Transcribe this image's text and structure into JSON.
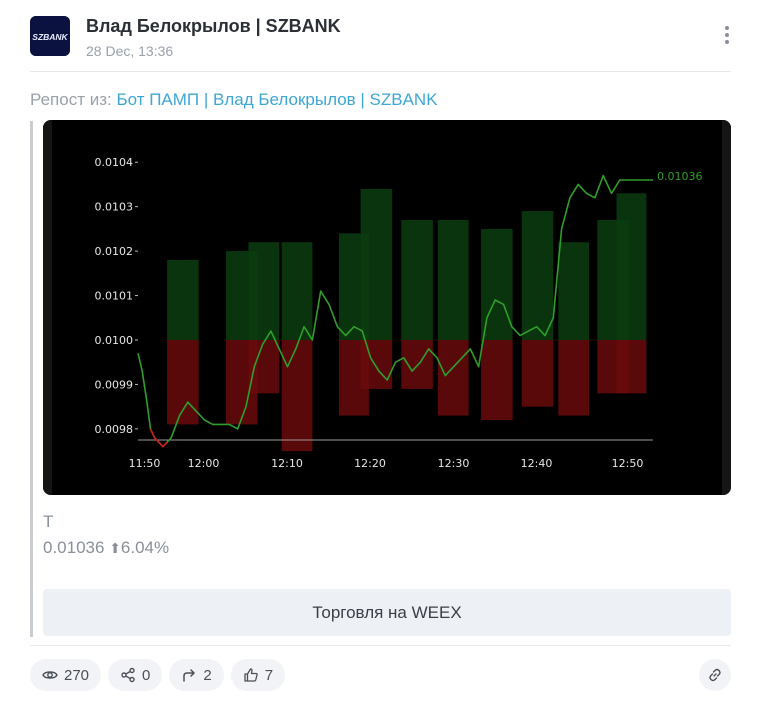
{
  "post": {
    "channel_name": "Влад Белокрылов | SZBANK",
    "date": "28 Dec, 13:36",
    "avatar_text": "SZBANK",
    "repost_prefix": "Репост из: ",
    "repost_source": "Бот ПАМП | Влад Белокрылов | SZBANK",
    "ticker": "T",
    "price": "0.01036",
    "change_arrow": "⬆",
    "change": "6.04%",
    "trade_button": "Торговля на WEEX"
  },
  "stats": {
    "views": "270",
    "shares": "0",
    "reposts": "2",
    "likes": "7"
  },
  "icons": {
    "menu": "more-vertical-icon",
    "views": "eye-icon",
    "shares": "share-icon",
    "reposts": "forward-arrow-icon",
    "likes": "thumbs-up-icon",
    "link": "link-icon"
  },
  "colors": {
    "accent_link": "#3ea6d6",
    "up_bar": "#0a3d0f",
    "down_bar": "#6a0a0d",
    "line": "#2f9e2a",
    "chart_bg": "#000000"
  },
  "chart_data": {
    "type": "line",
    "title": "",
    "xlabel": "",
    "ylabel": "",
    "x_ticks": [
      "11:50",
      "12:00",
      "12:10",
      "12:20",
      "12:30",
      "12:40",
      "12:50"
    ],
    "y_ticks": [
      "0.0098",
      "0.0099",
      "0.0100",
      "0.0101",
      "0.0102",
      "0.0103",
      "0.0104"
    ],
    "ylim": [
      0.00973,
      0.01045
    ],
    "xlim": [
      0,
      62
    ],
    "baseline": 0.01,
    "last_label": "0.01036",
    "series": [
      {
        "type": "line",
        "x": [
          0,
          0.5,
          1,
          1.5,
          2,
          2.5,
          3,
          3.5,
          4,
          5,
          6,
          7,
          8,
          9,
          10,
          11,
          12,
          13,
          14,
          15,
          16,
          17,
          18,
          19,
          20,
          21,
          22,
          23,
          24,
          25,
          26,
          27,
          28,
          29,
          30,
          31,
          32,
          33,
          34,
          35,
          36,
          37,
          38,
          39,
          40,
          41,
          42,
          43,
          44,
          45,
          46,
          47,
          48,
          49,
          50,
          51,
          52,
          53,
          54,
          55,
          56,
          57,
          58,
          59,
          60,
          61,
          62
        ],
        "y": [
          0.00997,
          0.00993,
          0.00987,
          0.0098,
          0.00978,
          0.00977,
          0.00976,
          0.00977,
          0.00978,
          0.00983,
          0.00986,
          0.00984,
          0.00982,
          0.00981,
          0.00981,
          0.00981,
          0.0098,
          0.00985,
          0.00994,
          0.00999,
          0.01002,
          0.00998,
          0.00994,
          0.00998,
          0.01003,
          0.01,
          0.01011,
          0.01008,
          0.01003,
          0.01001,
          0.01003,
          0.01002,
          0.00996,
          0.00993,
          0.00991,
          0.00995,
          0.00996,
          0.00993,
          0.00995,
          0.00998,
          0.00996,
          0.00992,
          0.00994,
          0.00996,
          0.00998,
          0.00994,
          0.01005,
          0.01009,
          0.01008,
          0.01003,
          0.01001,
          0.01002,
          0.01003,
          0.01001,
          0.01005,
          0.01025,
          0.01032,
          0.01035,
          0.01033,
          0.01032,
          0.01037,
          0.01033,
          0.01036,
          0.01036,
          0.01036,
          0.01036,
          0.01036
        ]
      }
    ],
    "up_bars": [
      {
        "x0": 3.5,
        "x1": 7.3,
        "top": 0.01018
      },
      {
        "x0": 10.6,
        "x1": 14.4,
        "top": 0.0102
      },
      {
        "x0": 13.3,
        "x1": 17,
        "top": 0.01022
      },
      {
        "x0": 17.3,
        "x1": 21,
        "top": 0.01022
      },
      {
        "x0": 24.2,
        "x1": 27.8,
        "top": 0.01024
      },
      {
        "x0": 26.8,
        "x1": 30.6,
        "top": 0.01034
      },
      {
        "x0": 31.7,
        "x1": 35.5,
        "top": 0.01027
      },
      {
        "x0": 36.1,
        "x1": 39.8,
        "top": 0.01027
      },
      {
        "x0": 41.3,
        "x1": 45.1,
        "top": 0.01025
      },
      {
        "x0": 46.2,
        "x1": 50,
        "top": 0.01029
      },
      {
        "x0": 50.6,
        "x1": 54.3,
        "top": 0.01022
      },
      {
        "x0": 55.3,
        "x1": 59.1,
        "top": 0.01027
      },
      {
        "x0": 57.6,
        "x1": 61.2,
        "top": 0.01033
      }
    ],
    "down_bars": [
      {
        "x0": 3.5,
        "x1": 7.3,
        "bottom": 0.00981
      },
      {
        "x0": 10.6,
        "x1": 14.4,
        "bottom": 0.00981
      },
      {
        "x0": 13.3,
        "x1": 17,
        "bottom": 0.00988
      },
      {
        "x0": 17.3,
        "x1": 21,
        "bottom": 0.00975
      },
      {
        "x0": 24.2,
        "x1": 27.8,
        "bottom": 0.00983
      },
      {
        "x0": 26.8,
        "x1": 30.6,
        "bottom": 0.00989
      },
      {
        "x0": 31.7,
        "x1": 35.5,
        "bottom": 0.00989
      },
      {
        "x0": 36.1,
        "x1": 39.8,
        "bottom": 0.00983
      },
      {
        "x0": 41.3,
        "x1": 45.1,
        "bottom": 0.00982
      },
      {
        "x0": 46.2,
        "x1": 50,
        "bottom": 0.00985
      },
      {
        "x0": 50.6,
        "x1": 54.3,
        "bottom": 0.00983
      },
      {
        "x0": 55.3,
        "x1": 59.1,
        "bottom": 0.00988
      },
      {
        "x0": 57.6,
        "x1": 61.2,
        "bottom": 0.00988
      }
    ]
  }
}
